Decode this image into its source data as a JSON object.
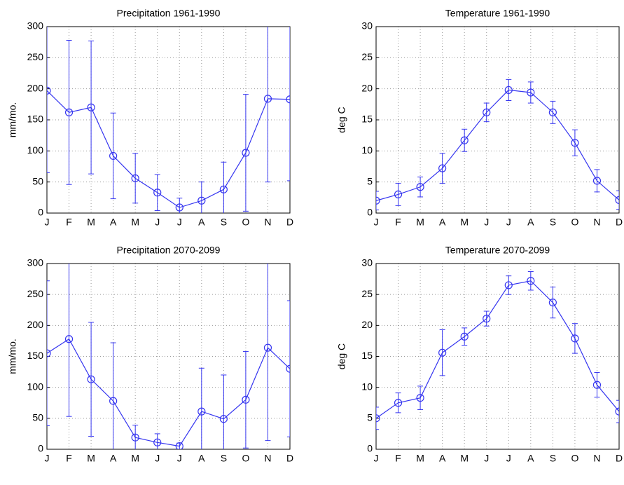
{
  "chart_data": [
    {
      "type": "line",
      "title": "Precipitation 1961-1990",
      "ylabel": "mm/mo.",
      "categories": [
        "J",
        "F",
        "M",
        "A",
        "M",
        "J",
        "J",
        "A",
        "S",
        "O",
        "N",
        "D"
      ],
      "series": [
        {
          "color": "#3535f0",
          "values": [
            197,
            162,
            170,
            92,
            56,
            33,
            9,
            20,
            38,
            97,
            184,
            183
          ],
          "errors": [
            132,
            116,
            107,
            69,
            40,
            29,
            15,
            30,
            44,
            94,
            134,
            131
          ]
        }
      ],
      "ylim": [
        0,
        300
      ],
      "yticks": [
        0,
        50,
        100,
        150,
        200,
        250,
        300
      ],
      "grid": true
    },
    {
      "type": "line",
      "title": "Temperature 1961-1990",
      "ylabel": "deg C",
      "categories": [
        "J",
        "F",
        "M",
        "A",
        "M",
        "J",
        "J",
        "A",
        "S",
        "O",
        "N",
        "D"
      ],
      "series": [
        {
          "color": "#3535f0",
          "values": [
            2.0,
            3.0,
            4.2,
            7.2,
            11.7,
            16.2,
            19.8,
            19.4,
            16.2,
            11.3,
            5.2,
            2.1
          ],
          "errors": [
            1.5,
            1.8,
            1.6,
            2.4,
            1.8,
            1.5,
            1.7,
            1.7,
            1.8,
            2.1,
            1.8,
            1.5
          ]
        }
      ],
      "ylim": [
        0,
        30
      ],
      "yticks": [
        0,
        5,
        10,
        15,
        20,
        25,
        30
      ],
      "grid": true
    },
    {
      "type": "line",
      "title": "Precipitation 2070-2099",
      "ylabel": "mm/mo.",
      "categories": [
        "J",
        "F",
        "M",
        "A",
        "M",
        "J",
        "J",
        "A",
        "S",
        "O",
        "N",
        "D"
      ],
      "series": [
        {
          "color": "#3535f0",
          "values": [
            155,
            178,
            113,
            78,
            19,
            11,
            5,
            61,
            49,
            80,
            164,
            130
          ],
          "errors": [
            117,
            125,
            92,
            94,
            20,
            14,
            5,
            70,
            71,
            78,
            150,
            110
          ]
        }
      ],
      "ylim": [
        0,
        300
      ],
      "yticks": [
        0,
        50,
        100,
        150,
        200,
        250,
        300
      ],
      "grid": true
    },
    {
      "type": "line",
      "title": "Temperature 2070-2099",
      "ylabel": "deg C",
      "categories": [
        "J",
        "F",
        "M",
        "A",
        "M",
        "J",
        "J",
        "A",
        "S",
        "O",
        "N",
        "D"
      ],
      "series": [
        {
          "color": "#3535f0",
          "values": [
            5.0,
            7.5,
            8.3,
            15.6,
            18.2,
            21.1,
            26.5,
            27.2,
            23.7,
            17.9,
            10.4,
            6.1
          ],
          "errors": [
            1.8,
            1.6,
            1.9,
            3.7,
            1.4,
            1.2,
            1.5,
            1.5,
            2.5,
            2.4,
            2.0,
            1.8
          ]
        }
      ],
      "ylim": [
        0,
        30
      ],
      "yticks": [
        0,
        5,
        10,
        15,
        20,
        25,
        30
      ],
      "grid": true
    }
  ]
}
